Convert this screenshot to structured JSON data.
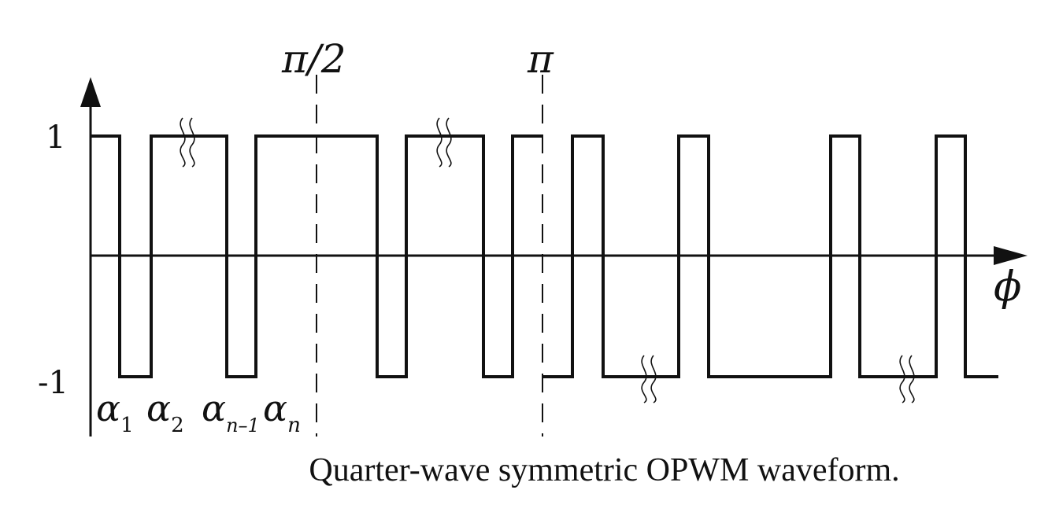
{
  "figure": {
    "caption": "Quarter-wave symmetric OPWM waveform.",
    "y_labels": {
      "high": "1",
      "low": "-1"
    },
    "x_axis_label": "ϕ",
    "markers": {
      "half_pi": "π/2",
      "pi": "π"
    },
    "angle_labels": [
      {
        "symbol": "α",
        "sub": "1"
      },
      {
        "symbol": "α",
        "sub": "2"
      },
      {
        "symbol": "α",
        "sub": "n–1"
      },
      {
        "symbol": "α",
        "sub": "n"
      }
    ],
    "break_symbol": "≀≀"
  }
}
